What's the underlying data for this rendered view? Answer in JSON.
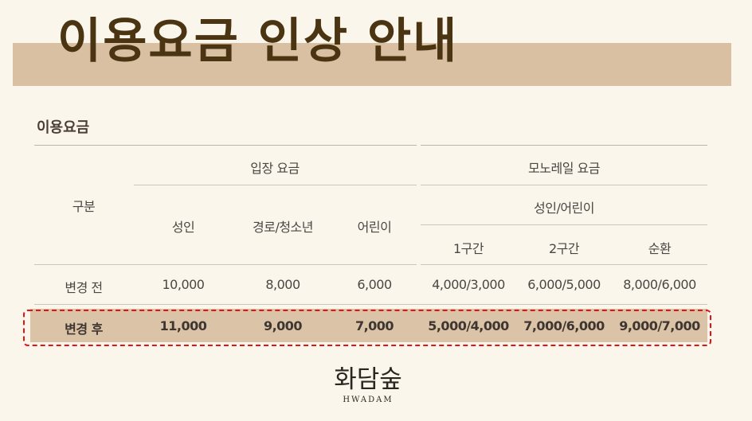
{
  "title": "이용요금 인상 안내",
  "section_title": "이용요금",
  "table": {
    "category_header": "구분",
    "entrance_header": "입장 요금",
    "monorail_header": "모노레일 요금",
    "monorail_sub": "성인/어린이",
    "columns": [
      "성인",
      "경로/청소년",
      "어린이",
      "1구간",
      "2구간",
      "순환"
    ],
    "rows": [
      {
        "label": "변경 전",
        "values": [
          "10,000",
          "8,000",
          "6,000",
          "4,000/3,000",
          "6,000/5,000",
          "8,000/6,000"
        ]
      },
      {
        "label": "변경 후",
        "values": [
          "11,000",
          "9,000",
          "7,000",
          "5,000/4,000",
          "7,000/6,000",
          "9,000/7,000"
        ]
      }
    ]
  },
  "logo": {
    "korean": "화담숲",
    "english": "HWADAM"
  },
  "colors": {
    "band": "#d9c0a2",
    "title": "#4a3412",
    "highlight_row": "#dbc3a8",
    "dashed_border": "#e01414",
    "background": "#faf6ec"
  }
}
